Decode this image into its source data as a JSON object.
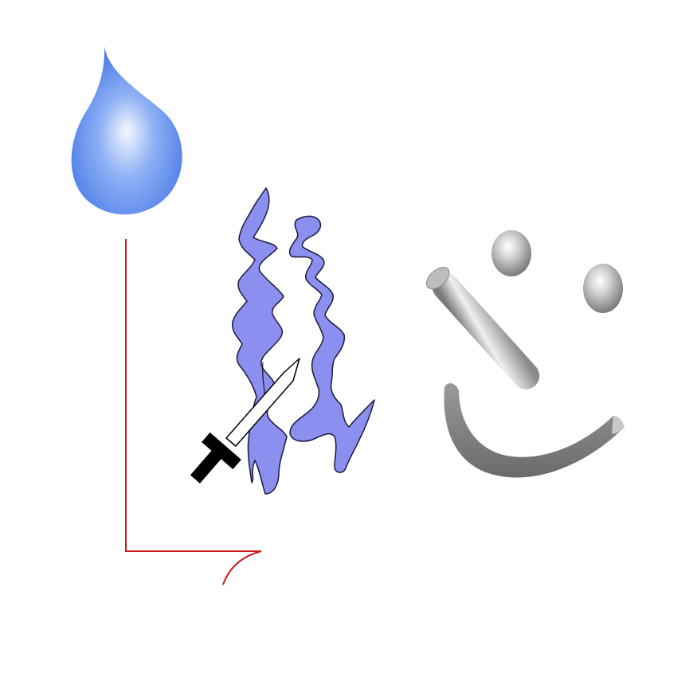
{
  "artwork": {
    "background_color": "#ffffff",
    "elements": [
      {
        "id": "water-drop",
        "icon": "water-drop-icon",
        "colors": {
          "highlight": "#f4f8ff",
          "mid": "#8fb0f5",
          "edge": "#4f7fe8"
        }
      },
      {
        "id": "red-bracket",
        "icon": "bracket-line-icon",
        "colors": {
          "stroke": "#cc1a1a"
        }
      },
      {
        "id": "flames",
        "icon": "flame-icon",
        "colors": {
          "fill": "#8a8ff0",
          "stroke": "#1a1a3a"
        }
      },
      {
        "id": "sword",
        "icon": "sword-icon",
        "colors": {
          "blade": "#ffffff",
          "outline": "#000000",
          "hilt": "#000000"
        }
      },
      {
        "id": "smiley",
        "icon": "smiley-face-icon",
        "colors": {
          "light": "#f2f2f2",
          "mid": "#b3b3b3",
          "dark": "#6e6e6e"
        }
      }
    ]
  }
}
